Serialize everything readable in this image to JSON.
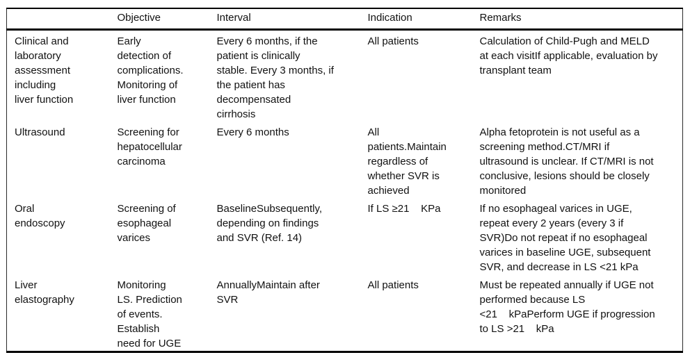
{
  "table": {
    "columns": [
      "",
      "Objective",
      "Interval",
      "Indication",
      "Remarks"
    ],
    "rows": [
      {
        "label": "Clinical and\nlaboratory\nassessment\nincluding\nliver function",
        "objective": "Early\ndetection of\ncomplications.\nMonitoring of\nliver function",
        "interval": "Every 6 months, if the\npatient is clinically\nstable. Every 3 months, if\nthe patient has\ndecompensated\ncirrhosis",
        "indication": "All patients",
        "remarks": "Calculation of Child-Pugh and MELD\nat each visitIf applicable, evaluation by\ntransplant team"
      },
      {
        "label": "Ultrasound",
        "objective": "Screening for\nhepatocellular\ncarcinoma",
        "interval": "Every 6 months",
        "indication": "All\npatients.Maintain\nregardless of\nwhether SVR is\nachieved",
        "remarks": "Alpha fetoprotein is not useful as a\nscreening method.CT/MRI if\nultrasound is unclear. If CT/MRI is not\nconclusive, lesions should be closely\nmonitored"
      },
      {
        "label": "Oral\nendoscopy",
        "objective": "Screening of\nesophageal\nvarices",
        "interval": "BaselineSubsequently,\ndepending on findings\nand SVR (Ref. 14)",
        "indication": "If LS ≥21    KPa",
        "remarks": "If no esophageal varices in UGE,\nrepeat every 2 years (every 3 if\nSVR)Do not repeat if no esophageal\nvarices in baseline UGE, subsequent\nSVR, and decrease in LS <21 kPa"
      },
      {
        "label": "Liver\nelastography",
        "objective": "Monitoring\nLS. Prediction\nof events.\nEstablish\nneed for UGE",
        "interval": "AnnuallyMaintain after\nSVR",
        "indication": "All patients",
        "remarks": "Must be repeated annually if UGE not\nperformed because LS\n<21    kPaPerform UGE if progression\nto LS >21    kPa"
      }
    ]
  }
}
